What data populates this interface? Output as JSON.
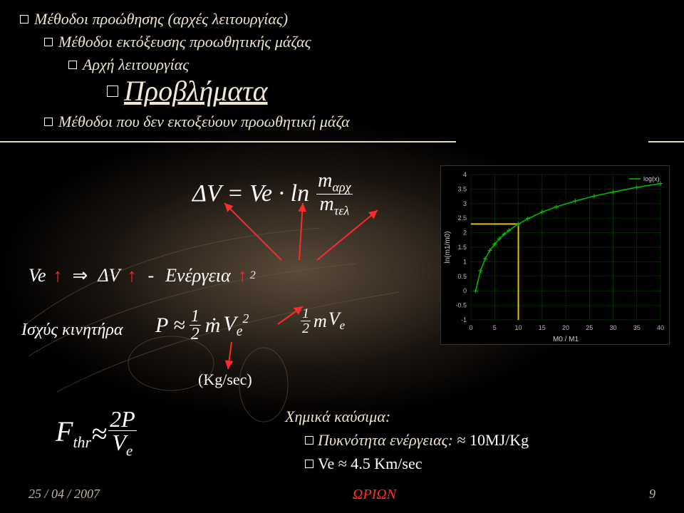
{
  "bullets": {
    "b1": "Μέθοδοι προώθησης (αρχές λειτουργίας)",
    "b2": "Μέθοδοι εκτόξευσης προωθητικής μάζας",
    "b3": "Αρχή λειτουργίας",
    "title": "Προβλήματα",
    "b4": "Μέθοδοι που δεν εκτοξεύουν προωθητική μάζα"
  },
  "style": {
    "bullet_color": "#ede4cc",
    "bullet_sizes": {
      "b1": 22,
      "b2": 22,
      "b3": 22,
      "title": 40,
      "b4": 22
    },
    "hr_color": "#e8dcc0",
    "title_underline": true,
    "accent_red": "#ff2a2a",
    "footer_date_color": "#c0b890",
    "footer_center_color": "#ff3020",
    "footer_page_color": "#c0b890"
  },
  "equations": {
    "dv_main": "ΔV = Ve · ln",
    "dv_frac_num": "m",
    "dv_frac_num_sub": "αρχ",
    "dv_frac_den": "m",
    "dv_frac_den_sub": "τελ",
    "line_ve": "Ve",
    "line_arrow": "↑",
    "line_imply": "⇒",
    "line_dv": "ΔV",
    "line_dash": "-",
    "line_energy": "Ενέργεια",
    "line_sq": "2",
    "power_label": "Ισχύς κινητήρα",
    "p_approx": "P ≈",
    "p_half_n": "1",
    "p_half_d": "2",
    "p_mdot": "ṁ",
    "p_ve2": "V",
    "p_ve2_sub": "e",
    "p_ve2_sup": "2",
    "ke_half_n": "1",
    "ke_half_d": "2",
    "ke_m": "m",
    "ke_v": "V",
    "ke_v_sub": "e",
    "kgsec": "(Kg/sec)",
    "fthr": "F",
    "fthr_sub": "thr",
    "fthr_approx": " ≈ ",
    "fthr_num": "2P",
    "fthr_den": "V",
    "fthr_den_sub": "e",
    "chem": "Χημικά καύσιμα:",
    "density_label": "Πυκνότητα ενέργειας:",
    "density_val": " ≈ 10MJ/Kg",
    "ve_approx": "Ve  ≈ 4.5 Km/sec"
  },
  "chart": {
    "type": "line",
    "xlabel": "M0 / M1",
    "ylabel": "ln(m1/m0)",
    "legend": "log(x)",
    "xlim": [
      0,
      40
    ],
    "xtick_step": 5,
    "ylim": [
      -1,
      4
    ],
    "ytick_step": 0.5,
    "background_color": "#000000",
    "grid_color": "#00a000",
    "curve_color": "#00c000",
    "marker": "+",
    "marker_color": "#00c000",
    "reference_lines": {
      "x": 10,
      "y": 2.3,
      "color": "#e0c000",
      "width": 2
    },
    "points": [
      {
        "x": 1,
        "y": 0
      },
      {
        "x": 2,
        "y": 0.69
      },
      {
        "x": 3,
        "y": 1.1
      },
      {
        "x": 4,
        "y": 1.39
      },
      {
        "x": 5,
        "y": 1.61
      },
      {
        "x": 6,
        "y": 1.79
      },
      {
        "x": 7,
        "y": 1.95
      },
      {
        "x": 8,
        "y": 2.08
      },
      {
        "x": 10,
        "y": 2.3
      },
      {
        "x": 12,
        "y": 2.48
      },
      {
        "x": 15,
        "y": 2.71
      },
      {
        "x": 18,
        "y": 2.89
      },
      {
        "x": 22,
        "y": 3.09
      },
      {
        "x": 26,
        "y": 3.26
      },
      {
        "x": 30,
        "y": 3.4
      },
      {
        "x": 35,
        "y": 3.56
      },
      {
        "x": 40,
        "y": 3.69
      }
    ]
  },
  "footer": {
    "date": "25 / 04 / 2007",
    "center": "ΩΡΙΩΝ",
    "page": "9"
  }
}
